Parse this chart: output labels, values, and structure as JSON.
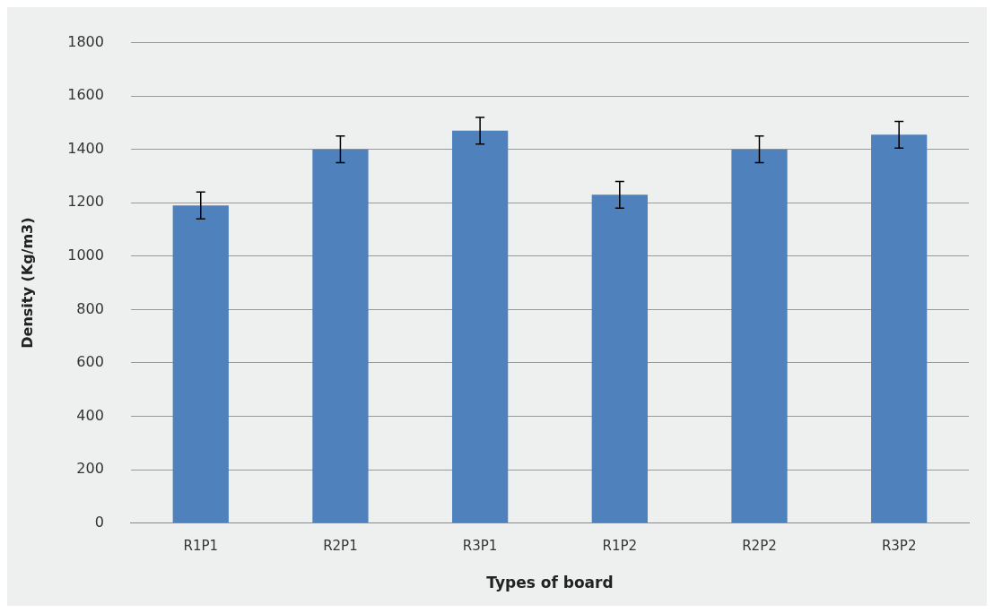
{
  "chart_data": {
    "type": "bar",
    "xlabel": "Types of board",
    "ylabel": "Density (Kg/m3)",
    "categories": [
      "R1P1",
      "R2P1",
      "R3P1",
      "R1P2",
      "R2P2",
      "R3P2"
    ],
    "values": [
      1190,
      1400,
      1470,
      1230,
      1400,
      1455
    ],
    "errors": [
      50,
      50,
      50,
      50,
      50,
      50
    ],
    "color": "#4f81bd",
    "ylim": [
      0,
      1800
    ],
    "yticks": [
      0,
      200,
      400,
      600,
      800,
      1000,
      1200,
      1400,
      1600,
      1800
    ],
    "grid": "y",
    "legend": false
  }
}
